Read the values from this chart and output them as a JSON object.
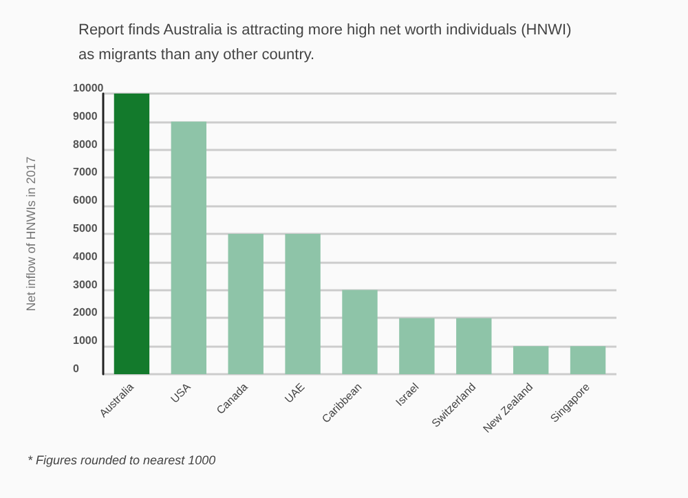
{
  "chart_data": {
    "type": "bar",
    "title": "Report finds Australia is attracting more high net worth individuals (HNWI)\nas migrants than any other country.",
    "ylabel": "Net inflow of HNWIs in 2017",
    "categories": [
      "Australia",
      "USA",
      "Canada",
      "UAE",
      "Caribbean",
      "Israel",
      "Switzerland",
      "New Zealand",
      "Singapore"
    ],
    "values": [
      10000,
      9000,
      5000,
      5000,
      3000,
      2000,
      2000,
      1000,
      1000
    ],
    "colors": [
      "#137a2c",
      "#8ec4a8",
      "#8ec4a8",
      "#8ec4a8",
      "#8ec4a8",
      "#8ec4a8",
      "#8ec4a8",
      "#8ec4a8",
      "#8ec4a8"
    ],
    "ylim": [
      0,
      10000
    ],
    "yticks": [
      0,
      1000,
      2000,
      3000,
      4000,
      5000,
      6000,
      7000,
      8000,
      9000,
      10000
    ],
    "grid": "y",
    "annotations": [
      "* Figures rounded to nearest 1000"
    ]
  }
}
